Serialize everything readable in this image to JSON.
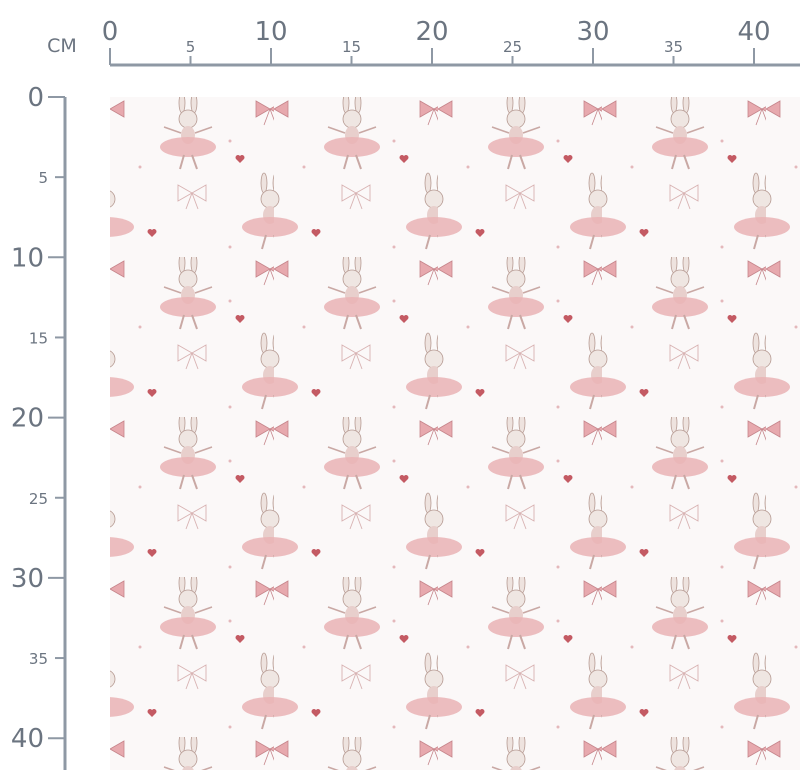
{
  "ruler": {
    "unit": "CM",
    "x_ticks": [
      0,
      5,
      10,
      15,
      20,
      25,
      30,
      35,
      40
    ],
    "y_ticks": [
      0,
      5,
      10,
      15,
      20,
      25,
      30,
      35,
      40
    ]
  }
}
